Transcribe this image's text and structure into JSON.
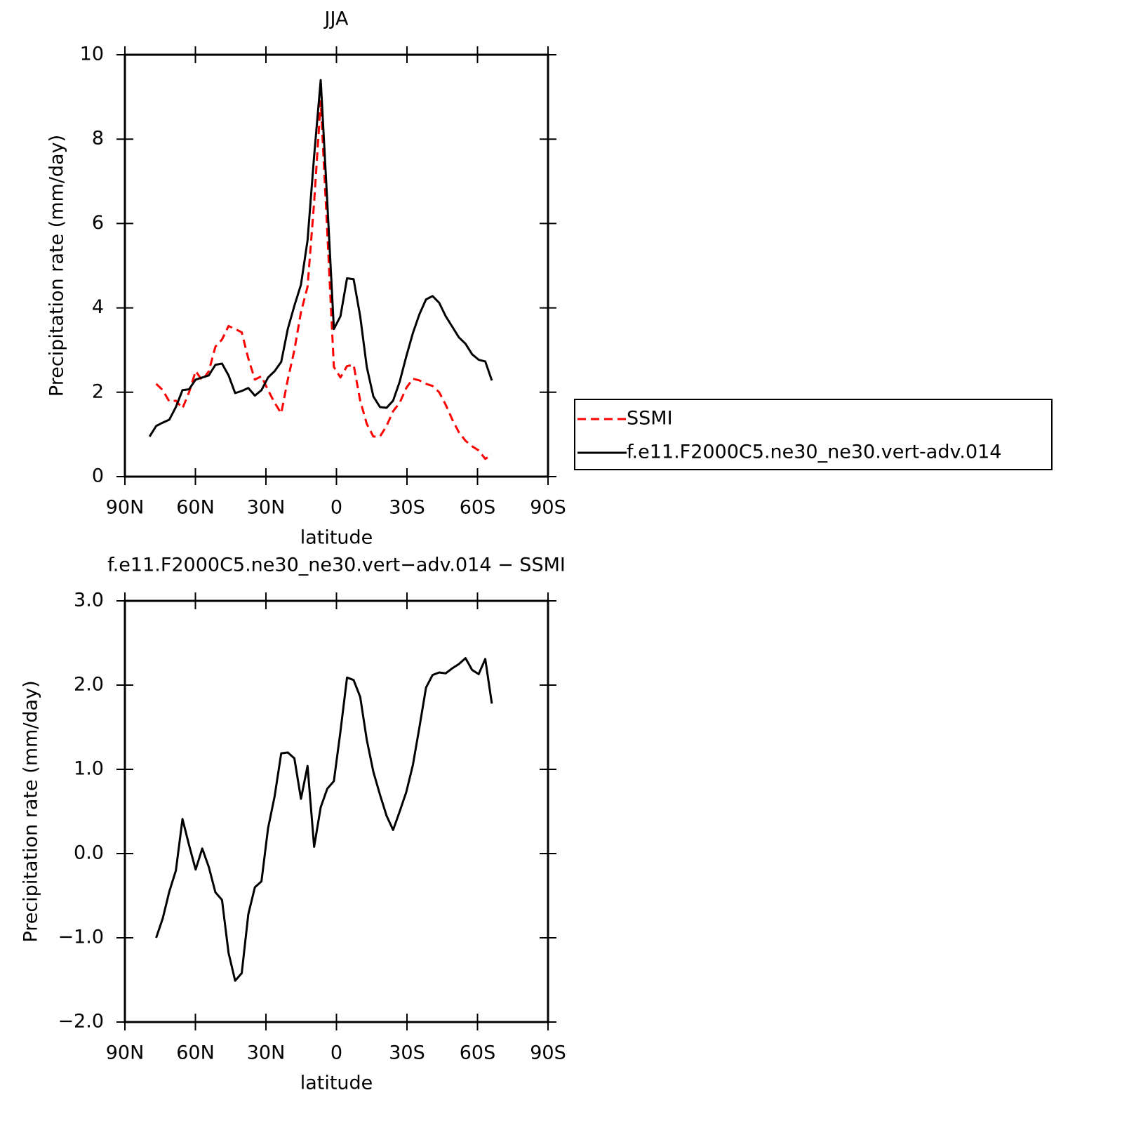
{
  "chart_data": [
    {
      "type": "line",
      "title": "JJA",
      "xlabel": "latitude",
      "ylabel": "Precipitation rate (mm/day)",
      "x": [
        79.5,
        76.7,
        73.9,
        71.1,
        68.3,
        65.5,
        62.7,
        59.9,
        57.1,
        54.3,
        51.5,
        48.7,
        45.9,
        43.1,
        40.3,
        37.5,
        34.7,
        31.9,
        29.1,
        26.3,
        23.5,
        20.7,
        17.9,
        15.1,
        12.3,
        9.5,
        6.7,
        3.9,
        1.1,
        -1.7,
        -4.5,
        -7.3,
        -10.1,
        -12.9,
        -15.7,
        -18.5,
        -21.3,
        -24.1,
        -26.9,
        -29.7,
        -32.5,
        -35.3,
        -38.1,
        -40.9,
        -43.7,
        -46.5,
        -49.3,
        -52.1,
        -54.9,
        -57.7,
        -60.5,
        -63.3,
        -66.1
      ],
      "series": [
        {
          "name": "SSMI",
          "color": "#ff0000",
          "dashed": true,
          "values": [
            null,
            2.2,
            2.05,
            1.78,
            1.8,
            1.62,
            2.0,
            2.5,
            2.28,
            2.5,
            3.08,
            3.25,
            3.57,
            3.5,
            3.42,
            2.8,
            2.3,
            2.38,
            2.05,
            1.75,
            1.5,
            2.3,
            3.0,
            3.9,
            4.5,
            6.5,
            8.9,
            5.8,
            2.6,
            2.35,
            2.62,
            2.65,
            1.8,
            1.25,
            0.95,
            0.95,
            1.2,
            1.55,
            1.75,
            2.1,
            2.32,
            2.28,
            2.2,
            2.15,
            2.0,
            1.7,
            1.35,
            1.05,
            0.85,
            0.72,
            0.62,
            0.42,
            0.52
          ]
        },
        {
          "name": "f.e11.F2000C5.ne30_ne30.vert-adv.014",
          "color": "#000000",
          "dashed": false,
          "values": [
            0.95,
            1.2,
            1.28,
            1.35,
            1.65,
            2.05,
            2.07,
            2.3,
            2.35,
            2.4,
            2.65,
            2.68,
            2.4,
            1.98,
            2.03,
            2.1,
            1.92,
            2.05,
            2.35,
            2.5,
            2.72,
            3.5,
            4.05,
            4.55,
            5.6,
            7.6,
            9.4,
            6.5,
            3.5,
            3.8,
            4.7,
            4.68,
            3.8,
            2.6,
            1.9,
            1.65,
            1.63,
            1.8,
            2.25,
            2.85,
            3.4,
            3.85,
            4.2,
            4.28,
            4.12,
            3.8,
            3.55,
            3.3,
            3.15,
            2.9,
            2.77,
            2.73,
            2.28
          ]
        }
      ],
      "xlim": [
        90,
        -90
      ],
      "xticks": [
        {
          "value": 90,
          "label": "90N"
        },
        {
          "value": 60,
          "label": "60N"
        },
        {
          "value": 30,
          "label": "30N"
        },
        0,
        {
          "value": -30,
          "label": "30S"
        },
        {
          "value": -60,
          "label": "60S"
        },
        {
          "value": -90,
          "label": "90S"
        }
      ],
      "ylim": [
        0,
        10
      ],
      "yticks": [
        0,
        2,
        4,
        6,
        8,
        10
      ],
      "legend": "outside-right"
    },
    {
      "type": "line",
      "title": "f.e11.F2000C5.ne30_ne30.vert−adv.014 − SSMI",
      "xlabel": "latitude",
      "ylabel": "Precipitation rate (mm/day)",
      "x": [
        79.5,
        76.7,
        73.9,
        71.1,
        68.3,
        65.5,
        62.7,
        59.9,
        57.1,
        54.3,
        51.5,
        48.7,
        45.9,
        43.1,
        40.3,
        37.5,
        34.7,
        31.9,
        29.1,
        26.3,
        23.5,
        20.7,
        17.9,
        15.1,
        12.3,
        9.5,
        6.7,
        3.9,
        1.1,
        -1.7,
        -4.5,
        -7.3,
        -10.1,
        -12.9,
        -15.7,
        -18.5,
        -21.3,
        -24.1,
        -26.9,
        -29.7,
        -32.5,
        -35.3,
        -38.1,
        -40.9,
        -43.7,
        -46.5,
        -49.3,
        -52.1,
        -54.9,
        -57.7,
        -60.5,
        -63.3,
        -66.1
      ],
      "values": [
        null,
        -1.0,
        -0.77,
        -0.45,
        -0.2,
        0.41,
        0.1,
        -0.19,
        0.06,
        -0.16,
        -0.46,
        -0.55,
        -1.18,
        -1.51,
        -1.42,
        -0.72,
        -0.4,
        -0.33,
        0.3,
        0.68,
        1.19,
        1.2,
        1.13,
        0.65,
        1.04,
        0.08,
        0.55,
        0.77,
        0.86,
        1.45,
        2.09,
        2.06,
        1.86,
        1.35,
        0.97,
        0.7,
        0.45,
        0.28,
        0.5,
        0.73,
        1.05,
        1.5,
        1.97,
        2.12,
        2.15,
        2.14,
        2.2,
        2.25,
        2.32,
        2.18,
        2.13,
        2.31,
        1.78
      ],
      "color": "#000000",
      "xlim": [
        90,
        -90
      ],
      "xticks": [
        {
          "value": 90,
          "label": "90N"
        },
        {
          "value": 60,
          "label": "60N"
        },
        {
          "value": 30,
          "label": "30N"
        },
        0,
        {
          "value": -30,
          "label": "30S"
        },
        {
          "value": -60,
          "label": "60S"
        },
        {
          "value": -90,
          "label": "90S"
        }
      ],
      "ylim": [
        -2,
        3
      ],
      "yticks": [
        {
          "value": 3,
          "label": "3.0"
        },
        {
          "value": 2,
          "label": "2.0"
        },
        {
          "value": 1,
          "label": "1.0"
        },
        {
          "value": 0,
          "label": "0.0"
        },
        {
          "value": -1,
          "label": "−1.0"
        },
        {
          "value": -2,
          "label": "−2.0"
        }
      ]
    }
  ]
}
